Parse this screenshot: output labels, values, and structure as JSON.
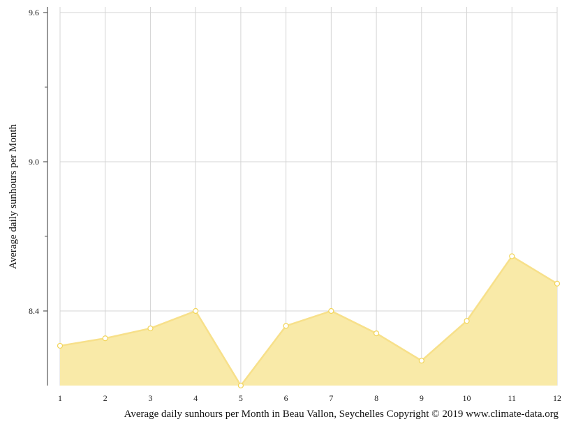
{
  "chart_data": {
    "type": "area",
    "xlabel": "",
    "ylabel": "Average daily sunhours per Month",
    "caption": "Average daily sunhours per Month in Beau Vallon, Seychelles Copyright © 2019 www.climate-data.org",
    "x": [
      1,
      2,
      3,
      4,
      5,
      6,
      7,
      8,
      9,
      10,
      11,
      12
    ],
    "x_tick_labels": [
      "1",
      "2",
      "3",
      "4",
      "5",
      "6",
      "7",
      "8",
      "9",
      "10",
      "11",
      "12"
    ],
    "y_ticks": [
      8.4,
      9.0,
      9.6
    ],
    "y_tick_labels": [
      "8.4",
      "9.0",
      "9.6"
    ],
    "ylim": [
      8.1,
      9.6
    ],
    "grid": true,
    "series": [
      {
        "values": [
          8.26,
          8.29,
          8.33,
          8.4,
          8.1,
          8.34,
          8.4,
          8.31,
          8.2,
          8.36,
          8.62,
          8.51
        ],
        "fill": "#f9eaa8",
        "line": "#f7e08a",
        "marker": "#f2d55a"
      }
    ]
  }
}
